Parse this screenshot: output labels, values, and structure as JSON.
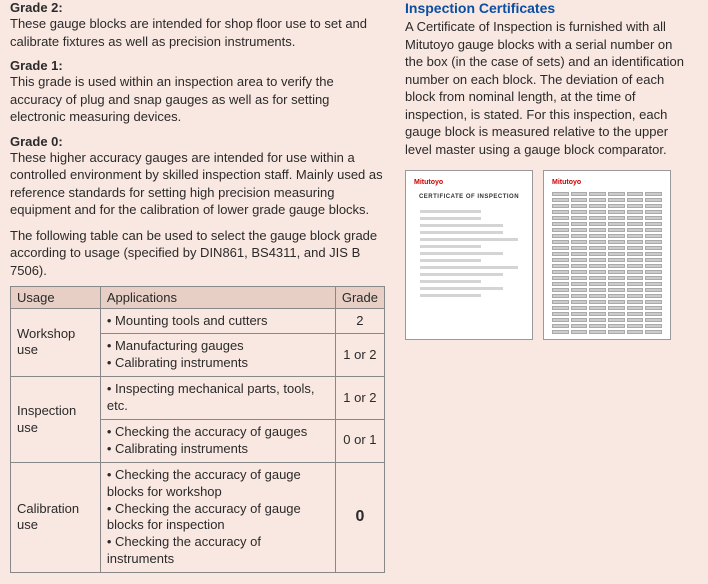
{
  "left": {
    "grades": [
      {
        "label": "Grade 2:",
        "text": "These gauge blocks are intended for shop floor use to set and calibrate fixtures as well as precision instruments."
      },
      {
        "label": "Grade 1:",
        "text": "This grade is used within an inspection area to verify the accuracy of plug and snap gauges as well as for setting electronic measuring devices."
      },
      {
        "label": "Grade 0:",
        "text": "These higher accuracy gauges are intended for use within a controlled environment by skilled inspection staff. Mainly used as reference standards for setting high precision measuring equipment and for the calibration of lower grade gauge blocks."
      }
    ],
    "intro": "The following table can be used to select the gauge block grade according to usage (specified by DIN861, BS4311, and JIS B 7506).",
    "table": {
      "headers": {
        "usage": "Usage",
        "applications": "Applications",
        "grade": "Grade"
      },
      "rows": [
        {
          "usage": "Workshop use",
          "rowspan": 2,
          "app": "• Mounting tools and cutters",
          "grade": "2"
        },
        {
          "app": "• Manufacturing gauges\n• Calibrating instruments",
          "grade": "1 or 2"
        },
        {
          "usage": "Inspection use",
          "rowspan": 2,
          "app": "• Inspecting mechanical parts, tools, etc.",
          "grade": "1 or 2"
        },
        {
          "app": "• Checking the accuracy of gauges\n• Calibrating instruments",
          "grade": "0 or 1"
        },
        {
          "usage": "Calibration use",
          "rowspan": 1,
          "app": "• Checking the accuracy of gauge blocks for workshop\n• Checking the accuracy of gauge blocks for inspection\n• Checking the accuracy of instruments",
          "grade": "0",
          "bold": true
        }
      ]
    }
  },
  "right": {
    "title": "Inspection Certificates",
    "text": "A Certificate of Inspection is furnished with all Mitutoyo gauge blocks with a serial number on the box (in the case of sets) and an identification number on each block. The deviation of each block from nominal length, at the time of inspection, is stated. For this inspection, each gauge block is measured relative to the upper level master using a gauge block comparator.",
    "cert1": {
      "logo": "Mitutoyo",
      "title": "CERTIFICATE OF INSPECTION"
    },
    "cert2": {
      "logo": "Mitutoyo"
    }
  }
}
